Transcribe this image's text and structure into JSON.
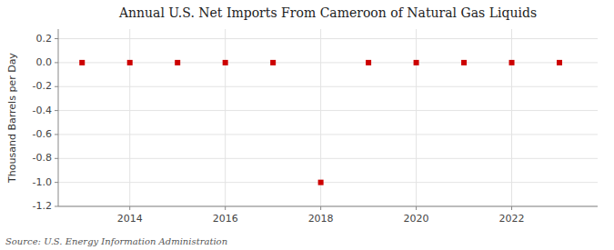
{
  "chart_data": {
    "type": "scatter",
    "title": "Annual U.S. Net Imports From Cameroon of Natural Gas Liquids",
    "y_label": "Thousand Barrels per Day",
    "source": "Source: U.S. Energy Information Administration",
    "x": [
      2013,
      2014,
      2015,
      2016,
      2017,
      2018,
      2019,
      2020,
      2021,
      2022,
      2023
    ],
    "values": [
      0.0,
      0.0,
      0.0,
      0.0,
      0.0,
      -1.0,
      0.0,
      0.0,
      0.0,
      0.0,
      0.0
    ],
    "color": "#cc0000",
    "marker": "square",
    "xlim": [
      2012.5,
      2023.8
    ],
    "xticks": [
      2014,
      2016,
      2018,
      2020,
      2022
    ],
    "ylim": [
      -1.2,
      0.28
    ],
    "yticks": [
      0.2,
      {
        "value": 0,
        "label": "0.0"
      },
      -0.2,
      -0.4,
      -0.6,
      -0.8,
      {
        "value": -1,
        "label": "-1.0"
      },
      -1.2
    ],
    "grid": true
  }
}
